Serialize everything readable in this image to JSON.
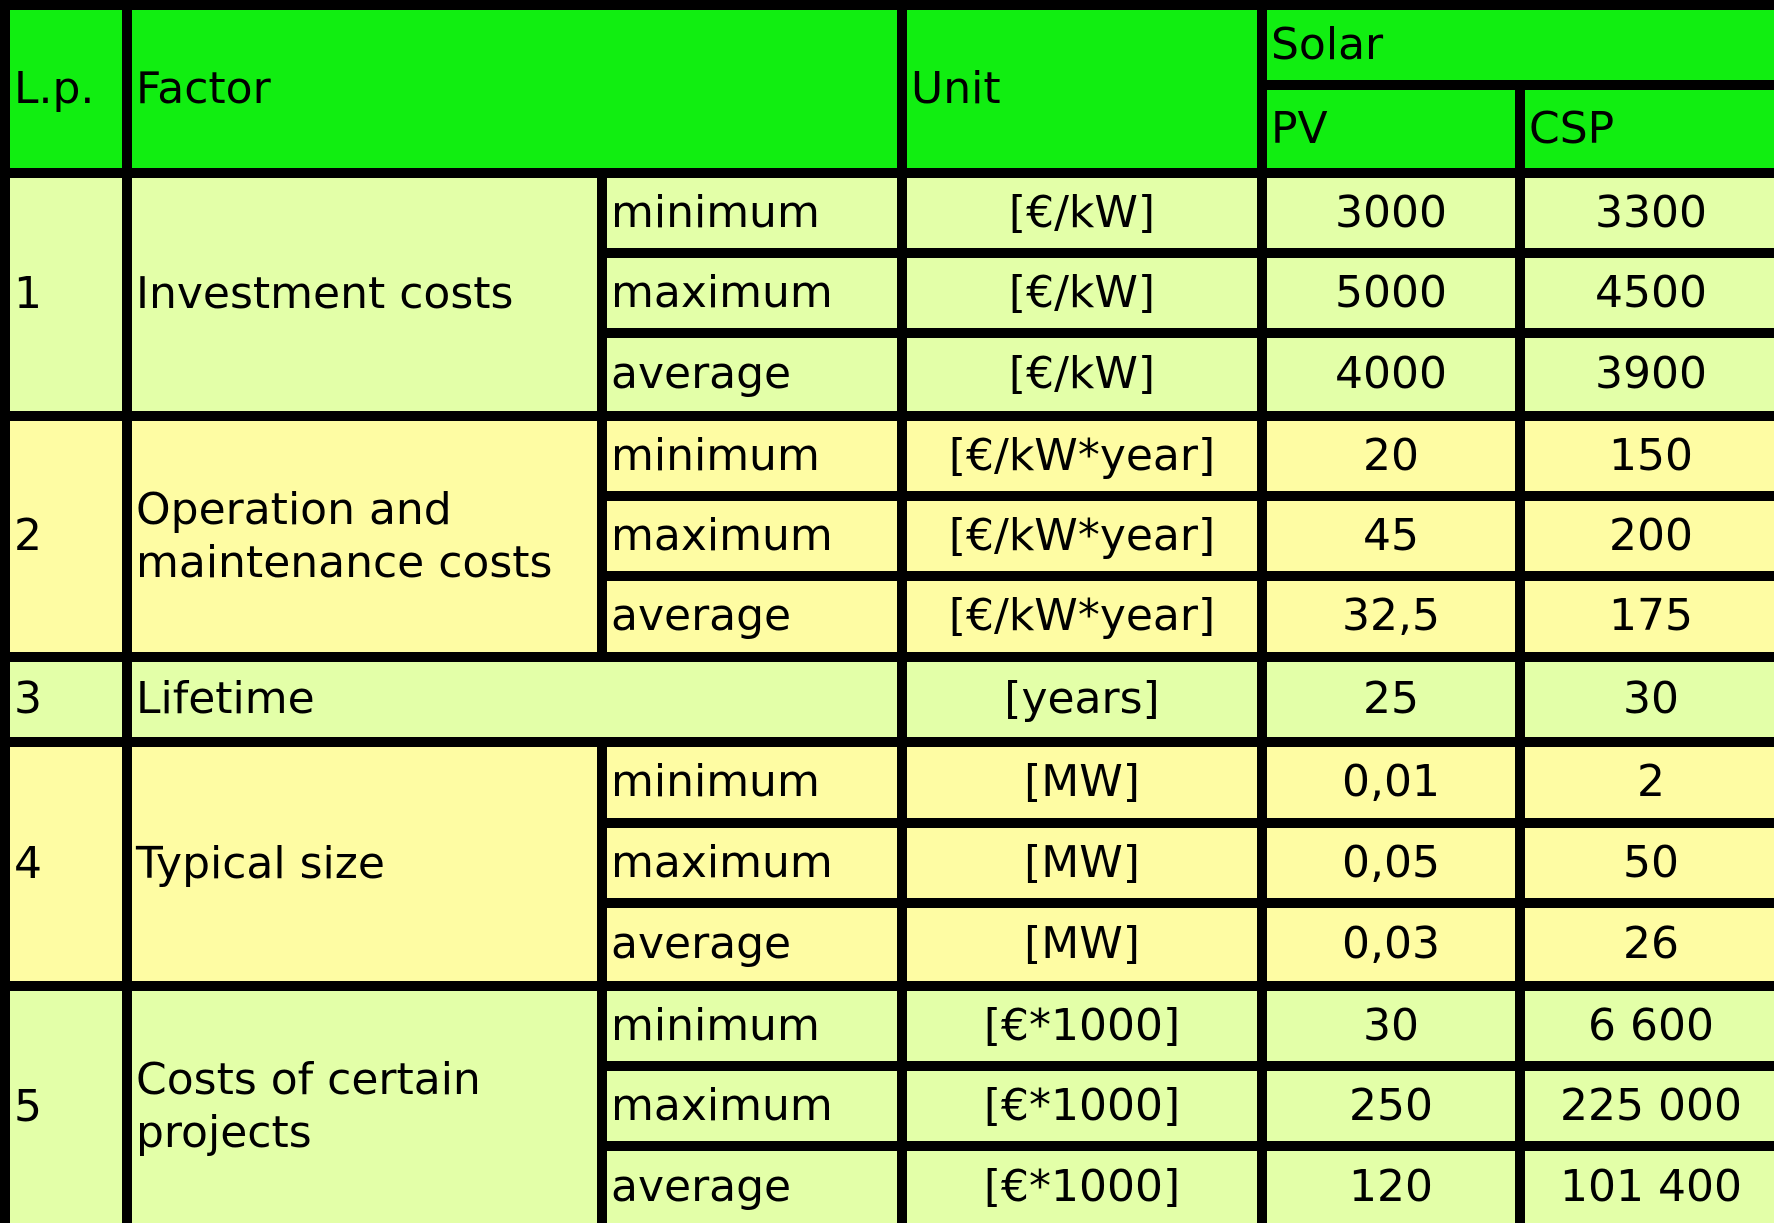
{
  "header": {
    "lp": "L.p.",
    "factor": "Factor",
    "unit": "Unit",
    "group": "Solar",
    "pv": "PV",
    "csp": "CSP"
  },
  "colors": {
    "header_green": "#11ee11",
    "row_light_green": "#e3ffa8",
    "row_light_yellow": "#fefca3",
    "grid_lines": "#000000"
  },
  "rows": [
    {
      "lp": "1",
      "factor": "Investment costs",
      "sub": [
        {
          "stat": "minimum",
          "unit": "[€/kW]",
          "pv": "3000",
          "csp": "3300"
        },
        {
          "stat": "maximum",
          "unit": "[€/kW]",
          "pv": "5000",
          "csp": "4500"
        },
        {
          "stat": "average",
          "unit": "[€/kW]",
          "pv": "4000",
          "csp": "3900"
        }
      ]
    },
    {
      "lp": "2",
      "factor": "Operation and maintenance costs",
      "sub": [
        {
          "stat": "minimum",
          "unit": "[€/kW*year]",
          "pv": "20",
          "csp": "150"
        },
        {
          "stat": "maximum",
          "unit": "[€/kW*year]",
          "pv": "45",
          "csp": "200"
        },
        {
          "stat": "average",
          "unit": "[€/kW*year]",
          "pv": "32,5",
          "csp": "175"
        }
      ]
    },
    {
      "lp": "3",
      "factor": "Lifetime",
      "unit": "[years]",
      "pv": "25",
      "csp": "30"
    },
    {
      "lp": "4",
      "factor": "Typical size",
      "sub": [
        {
          "stat": "minimum",
          "unit": "[MW]",
          "pv": "0,01",
          "csp": "2"
        },
        {
          "stat": "maximum",
          "unit": "[MW]",
          "pv": "0,05",
          "csp": "50"
        },
        {
          "stat": "average",
          "unit": "[MW]",
          "pv": "0,03",
          "csp": "26"
        }
      ]
    },
    {
      "lp": "5",
      "factor": "Costs of certain projects",
      "sub": [
        {
          "stat": "minimum",
          "unit": "[€*1000]",
          "pv": "30",
          "csp": "6 600"
        },
        {
          "stat": "maximum",
          "unit": "[€*1000]",
          "pv": "250",
          "csp": "225 000"
        },
        {
          "stat": "average",
          "unit": "[€*1000]",
          "pv": "120",
          "csp": "101 400"
        }
      ]
    }
  ]
}
